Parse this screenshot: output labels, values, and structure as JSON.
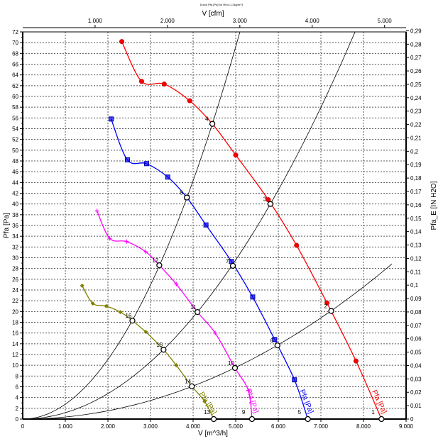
{
  "chart_data": {
    "type": "line",
    "title": "Druck Pfa [Pa] für Rho=1,2kg/m^3",
    "xlabel": "V [m^3/h]",
    "ylabel": "Pfa [Pa]",
    "x2label": "V [cfm]",
    "y2label": "Pfa_E [IN H2O]",
    "xlim": [
      0,
      9000
    ],
    "ylim": [
      0,
      72
    ],
    "y2lim": [
      0,
      0.29
    ],
    "grid": true,
    "x_ticks": [
      1000,
      2000,
      3000,
      4000,
      5000,
      6000,
      7000,
      8000,
      9000
    ],
    "x_tick_labels": [
      "1.000",
      "2.000",
      "3.000",
      "4.000",
      "5.000",
      "6.000",
      "7.000",
      "8.000",
      "9.000"
    ],
    "x2_ticks_cfm": [
      1000,
      2000,
      3000,
      4000,
      5000
    ],
    "x2_tick_labels": [
      "1.000",
      "2.000",
      "3.000",
      "4.000",
      "5.000"
    ],
    "y_ticks": [
      0,
      2,
      4,
      6,
      8,
      10,
      12,
      14,
      16,
      18,
      20,
      22,
      24,
      26,
      28,
      30,
      32,
      34,
      36,
      38,
      40,
      42,
      44,
      46,
      48,
      50,
      52,
      54,
      56,
      58,
      60,
      62,
      64,
      66,
      68,
      70,
      72
    ],
    "y2_tick_labels": [
      "0",
      "0,01",
      "0,02",
      "0,03",
      "0,04",
      "0,05",
      "0,06",
      "0,07",
      "0,08",
      "0,09",
      "0,1",
      "0,11",
      "0,12",
      "0,13",
      "0,14",
      "0,15",
      "0,16",
      "0,17",
      "0,18",
      "0,19",
      "0,2",
      "0,21",
      "0,22",
      "0,23",
      "0,24",
      "0,25",
      "0,26",
      "0,27",
      "0,28",
      "0,29"
    ],
    "series": [
      {
        "label": "Pfa [Pa]",
        "color": "#ff0000",
        "marker": "circle",
        "x": [
          2326,
          2791,
          3322,
          3920,
          4452,
          5000,
          5764,
          6429,
          7143,
          7824,
          8422
        ],
        "y": [
          70.2,
          62.8,
          62.3,
          59.2,
          54.9,
          49.1,
          40.8,
          32.3,
          21.6,
          10.8,
          0
        ]
      },
      {
        "label": "Pfa [Pa]",
        "color": "#0000ff",
        "marker": "square",
        "x": [
          2076,
          2458,
          2907,
          3405,
          3854,
          4302,
          4900,
          5399,
          5914,
          6379,
          6694
        ],
        "y": [
          55.8,
          48.2,
          47.5,
          45.0,
          41.2,
          36.1,
          29.3,
          22.7,
          14.8,
          7.3,
          0
        ]
      },
      {
        "label": "Pfa [Pa]",
        "color": "#ff00ff",
        "marker": "plus",
        "x": [
          1744,
          2043,
          2442,
          2890,
          3206,
          3605,
          4103,
          4518,
          4983,
          5299,
          5382
        ],
        "y": [
          38.7,
          33.6,
          33.0,
          31.1,
          28.6,
          25.1,
          19.9,
          16.0,
          9.5,
          5.3,
          0
        ]
      },
      {
        "label": "Pfa [Pa]",
        "color": "#808000",
        "marker": "diamond",
        "x": [
          1395,
          1645,
          1960,
          2292,
          2575,
          2890,
          3306,
          3605,
          3970,
          4269,
          4485
        ],
        "y": [
          24.8,
          21.5,
          21.0,
          19.9,
          18.3,
          16.2,
          12.9,
          10.0,
          6.1,
          3.3,
          0
        ]
      }
    ],
    "system_curves": [
      {
        "k": 2.77e-06,
        "xmax": 5098
      },
      {
        "k": 1.183e-06,
        "xmax": 7800
      },
      {
        "k": 3.84e-07,
        "xmax": 8670
      }
    ],
    "operating_points": [
      {
        "label": "4",
        "x": 4452,
        "y": 54.9
      },
      {
        "label": "3",
        "x": 5814,
        "y": 40.0
      },
      {
        "label": "2",
        "x": 7243,
        "y": 20.1
      },
      {
        "label": "1",
        "x": 8422,
        "y": 0
      },
      {
        "label": "8",
        "x": 3854,
        "y": 41.2
      },
      {
        "label": "7",
        "x": 4934,
        "y": 28.5
      },
      {
        "label": "6",
        "x": 5980,
        "y": 13.7
      },
      {
        "label": "5",
        "x": 6694,
        "y": 0
      },
      {
        "label": "12",
        "x": 3206,
        "y": 28.6
      },
      {
        "label": "11",
        "x": 4103,
        "y": 19.9
      },
      {
        "label": "10",
        "x": 4983,
        "y": 9.5
      },
      {
        "label": "9",
        "x": 5382,
        "y": 0
      },
      {
        "label": "16",
        "x": 2575,
        "y": 18.3
      },
      {
        "label": "15",
        "x": 3306,
        "y": 12.9
      },
      {
        "label": "14",
        "x": 3970,
        "y": 6.1
      },
      {
        "label": "13",
        "x": 4485,
        "y": 0
      }
    ]
  }
}
